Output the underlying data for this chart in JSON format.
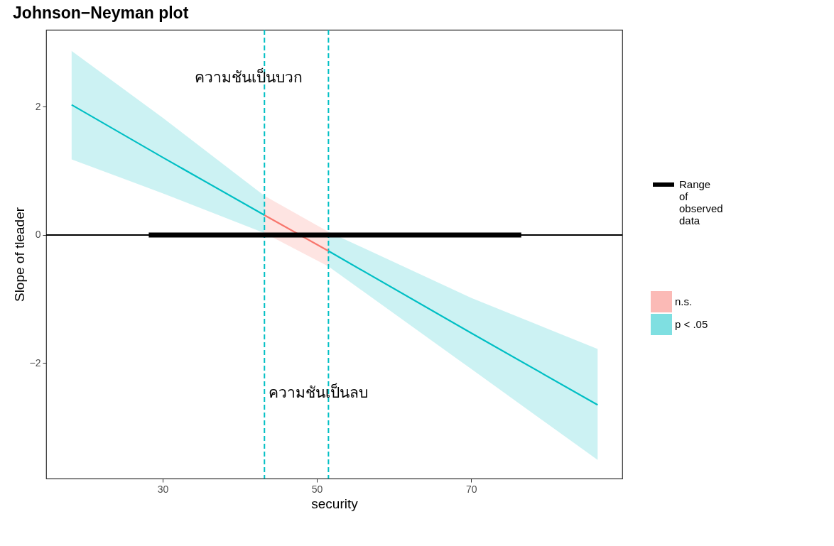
{
  "chart_data": {
    "type": "line",
    "title": "Johnson−Neyman plot",
    "xlabel": "security",
    "ylabel": "Slope of tleader",
    "xlim": [
      14.9,
      89.6
    ],
    "ylim": [
      -3.8,
      3.2
    ],
    "xticks": [
      30,
      50,
      70
    ],
    "yticks": [
      {
        "value": -2,
        "label": "−2"
      },
      0,
      2
    ],
    "grid": false,
    "legend": "right",
    "series": [
      {
        "name": "Range of observed data",
        "color": "#000000",
        "x": [
          28.2,
          76.5
        ],
        "values": [
          0,
          0
        ]
      },
      {
        "name": "n.s.",
        "color": "#f8766d",
        "x": [
          43.2,
          51.5
        ],
        "values": [
          0.31,
          -0.25
        ],
        "lower": [
          0.03,
          -0.49
        ],
        "upper": [
          0.61,
          0.05
        ]
      },
      {
        "name": "p < .05",
        "color": "#00bfc4",
        "x": [
          18.2,
          30,
          43.2,
          47.35,
          51.5,
          70,
          86.4
        ],
        "values": [
          2.03,
          1.21,
          0.31,
          null,
          -0.25,
          -1.53,
          -2.65
        ],
        "lower": [
          1.18,
          0.65,
          0.03,
          null,
          -0.49,
          -2.09,
          -3.51
        ],
        "upper": [
          2.87,
          1.83,
          0.61,
          null,
          0.05,
          -0.98,
          -1.78
        ]
      }
    ],
    "ref_lines": [
      {
        "axis": "y",
        "value": 0,
        "color": "#000000",
        "line_style": "solid"
      },
      {
        "axis": "x",
        "value": 43.2,
        "color": "#00bfc4",
        "line_style": "dashed"
      },
      {
        "axis": "x",
        "value": 51.5,
        "color": "#00bfc4",
        "line_style": "dashed"
      }
    ],
    "annotations": [
      "ความชันเป็นบวก",
      "ความชันเป็นลบ"
    ]
  }
}
